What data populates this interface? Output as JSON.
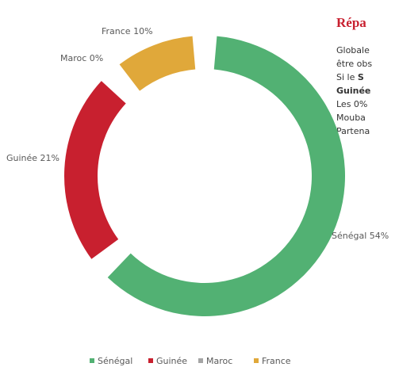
{
  "chart_data": {
    "type": "donut",
    "categories": [
      "Sénégal",
      "Guinée",
      "Maroc",
      "France"
    ],
    "values": [
      54,
      21,
      0,
      10
    ],
    "value_labels": [
      "Sénégal 54%",
      "Guinée 21%",
      "Maroc 0%",
      "France 10%"
    ],
    "colors": [
      "#52b173",
      "#c8202f",
      "#a5a5a5",
      "#e0a83a"
    ],
    "legend": "bottom"
  },
  "text_panel": {
    "heading": "Répa",
    "lines": [
      "Globale",
      "être obs",
      "Si le ",
      "Guinée",
      "Les 0%",
      "Mouba",
      "Partena"
    ],
    "bold_fragment": "S"
  }
}
